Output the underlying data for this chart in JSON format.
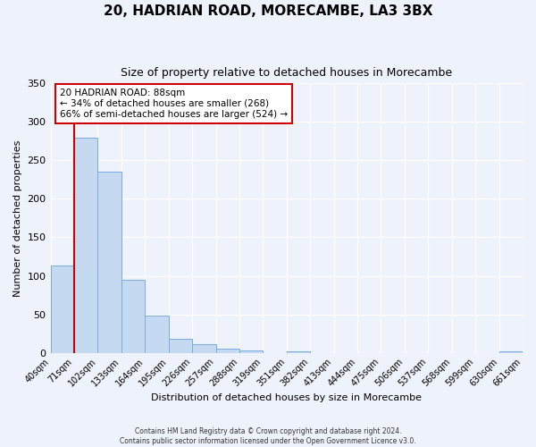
{
  "title": "20, HADRIAN ROAD, MORECAMBE, LA3 3BX",
  "subtitle": "Size of property relative to detached houses in Morecambe",
  "xlabel": "Distribution of detached houses by size in Morecambe",
  "ylabel": "Number of detached properties",
  "bar_heights": [
    113,
    280,
    235,
    95,
    48,
    18,
    11,
    5,
    3,
    0,
    2,
    0,
    0,
    0,
    0,
    0,
    0,
    0,
    0,
    2
  ],
  "bin_labels": [
    "40sqm",
    "71sqm",
    "102sqm",
    "133sqm",
    "164sqm",
    "195sqm",
    "226sqm",
    "257sqm",
    "288sqm",
    "319sqm",
    "351sqm",
    "382sqm",
    "413sqm",
    "444sqm",
    "475sqm",
    "506sqm",
    "537sqm",
    "568sqm",
    "599sqm",
    "630sqm",
    "661sqm"
  ],
  "bar_color": "#c5d9f0",
  "bar_edge_color": "#7aace0",
  "vline_x": 1,
  "vline_color": "#cc0000",
  "ylim": [
    0,
    350
  ],
  "yticks": [
    0,
    50,
    100,
    150,
    200,
    250,
    300,
    350
  ],
  "annotation_title": "20 HADRIAN ROAD: 88sqm",
  "annotation_line1": "← 34% of detached houses are smaller (268)",
  "annotation_line2": "66% of semi-detached houses are larger (524) →",
  "annotation_box_edge": "#cc0000",
  "footer1": "Contains HM Land Registry data © Crown copyright and database right 2024.",
  "footer2": "Contains public sector information licensed under the Open Government Licence v3.0.",
  "background_color": "#eef2fb",
  "n_bins": 20
}
